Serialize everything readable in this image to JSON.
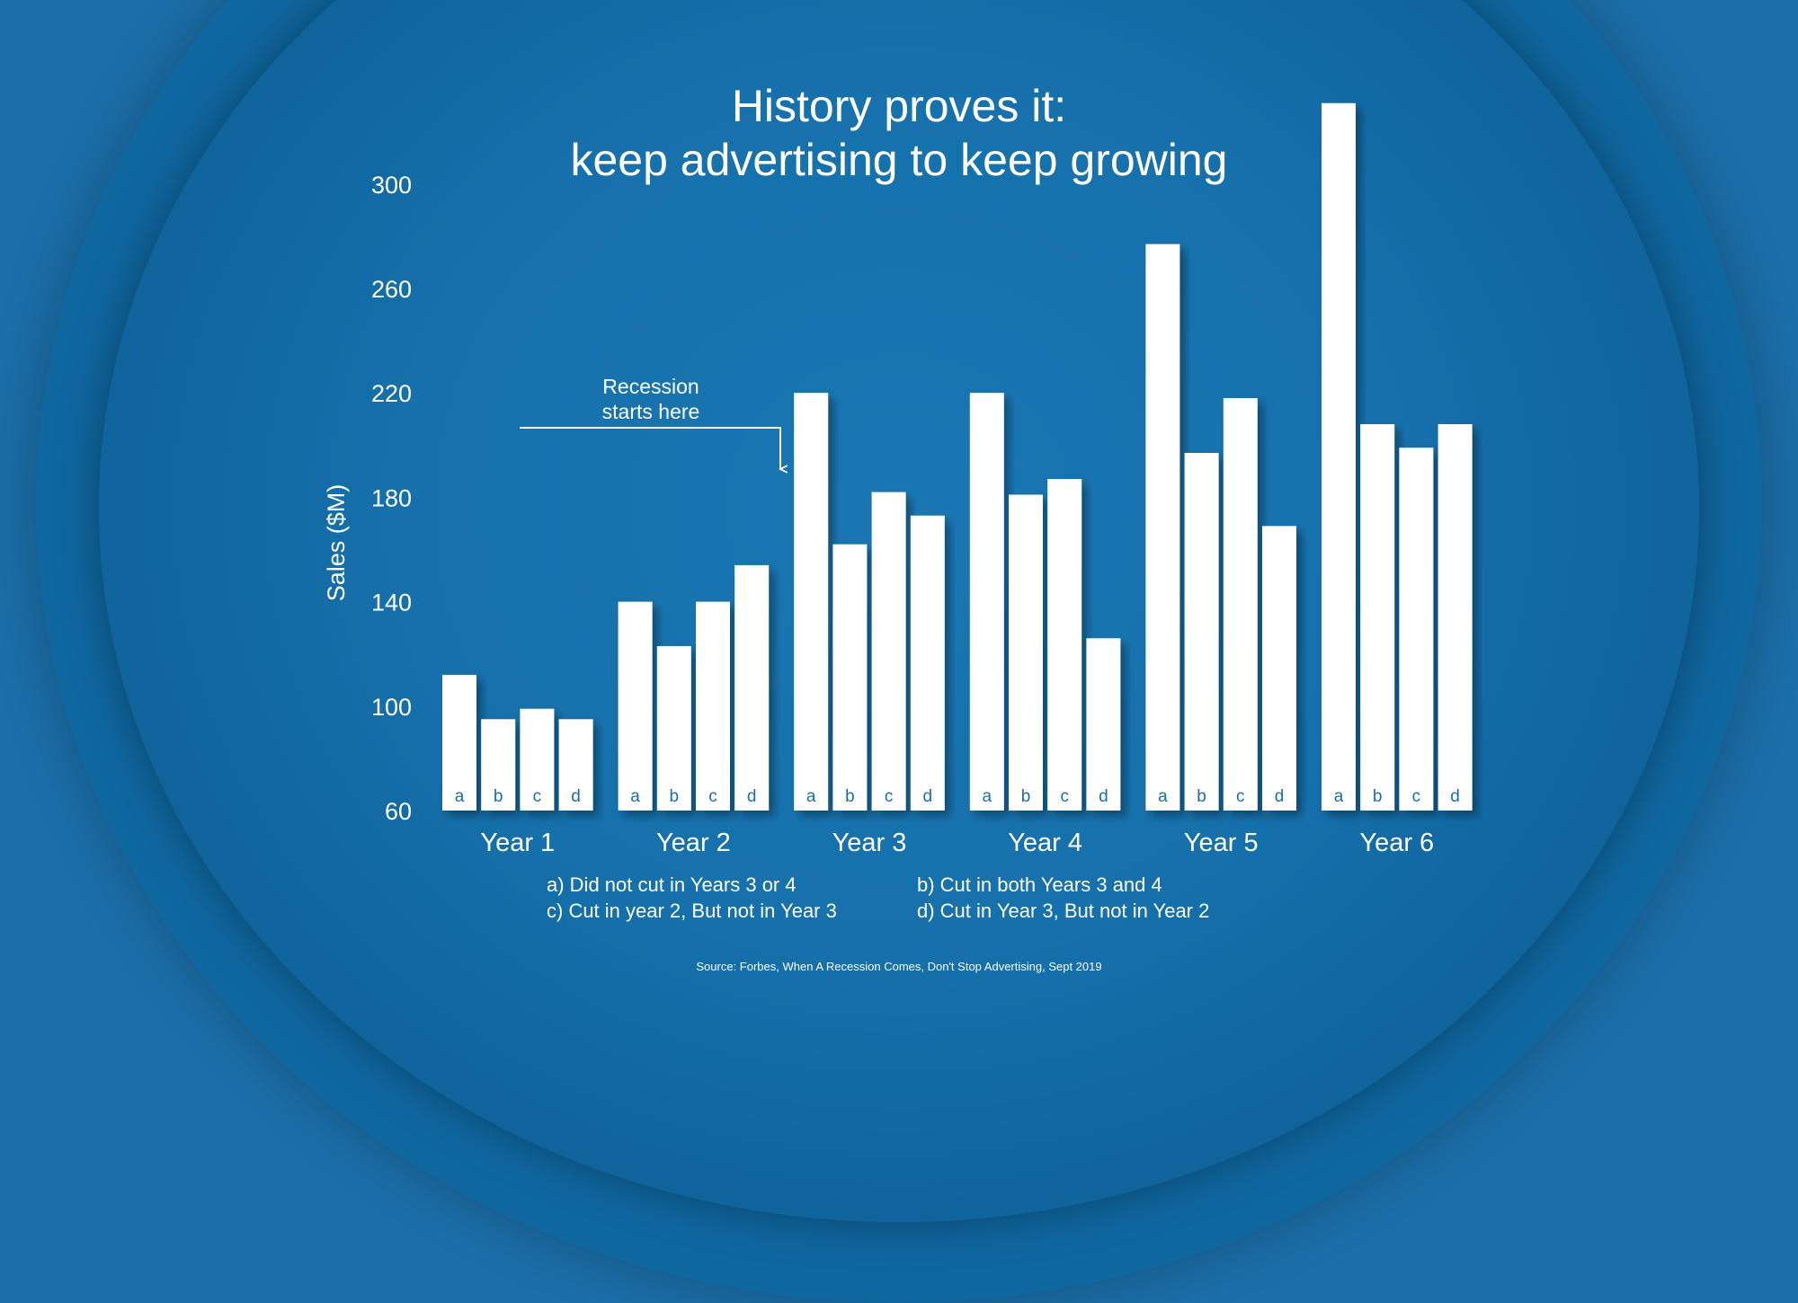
{
  "title_line_1": "History proves it:",
  "title_line_2": "keep advertising to keep growing",
  "annotation": {
    "line_1": "Recession",
    "line_2": "starts here"
  },
  "legend": [
    "a) Did not cut in Years 3 or 4",
    "b) Cut in both Years 3 and 4",
    "c) Cut in year 2, But not in Year 3",
    "d) Cut in Year 3, But not in Year 2"
  ],
  "source": "Source: Forbes, When A Recession Comes, Don't Stop Advertising, Sept 2019",
  "colors": {
    "background": "#1b6ea8",
    "bars": "#ffffff"
  },
  "chart_data": {
    "type": "bar",
    "title": "History proves it: keep advertising to keep growing",
    "xlabel": "",
    "ylabel": "Sales ($M)",
    "ylim": [
      60,
      330
    ],
    "yticks": [
      60,
      100,
      140,
      180,
      220,
      260,
      300
    ],
    "categories": [
      "Year 1",
      "Year 2",
      "Year 3",
      "Year 4",
      "Year 5",
      "Year 6"
    ],
    "bar_letters": [
      "a",
      "b",
      "c",
      "d"
    ],
    "series": [
      {
        "name": "a",
        "values": [
          112,
          140,
          220,
          220,
          277,
          331
        ]
      },
      {
        "name": "b",
        "values": [
          95,
          123,
          162,
          181,
          197,
          208
        ]
      },
      {
        "name": "c",
        "values": [
          99,
          140,
          182,
          187,
          218,
          199
        ]
      },
      {
        "name": "d",
        "values": [
          95,
          154,
          173,
          126,
          169,
          208
        ]
      }
    ],
    "grid": false,
    "legend_position": "bottom"
  }
}
